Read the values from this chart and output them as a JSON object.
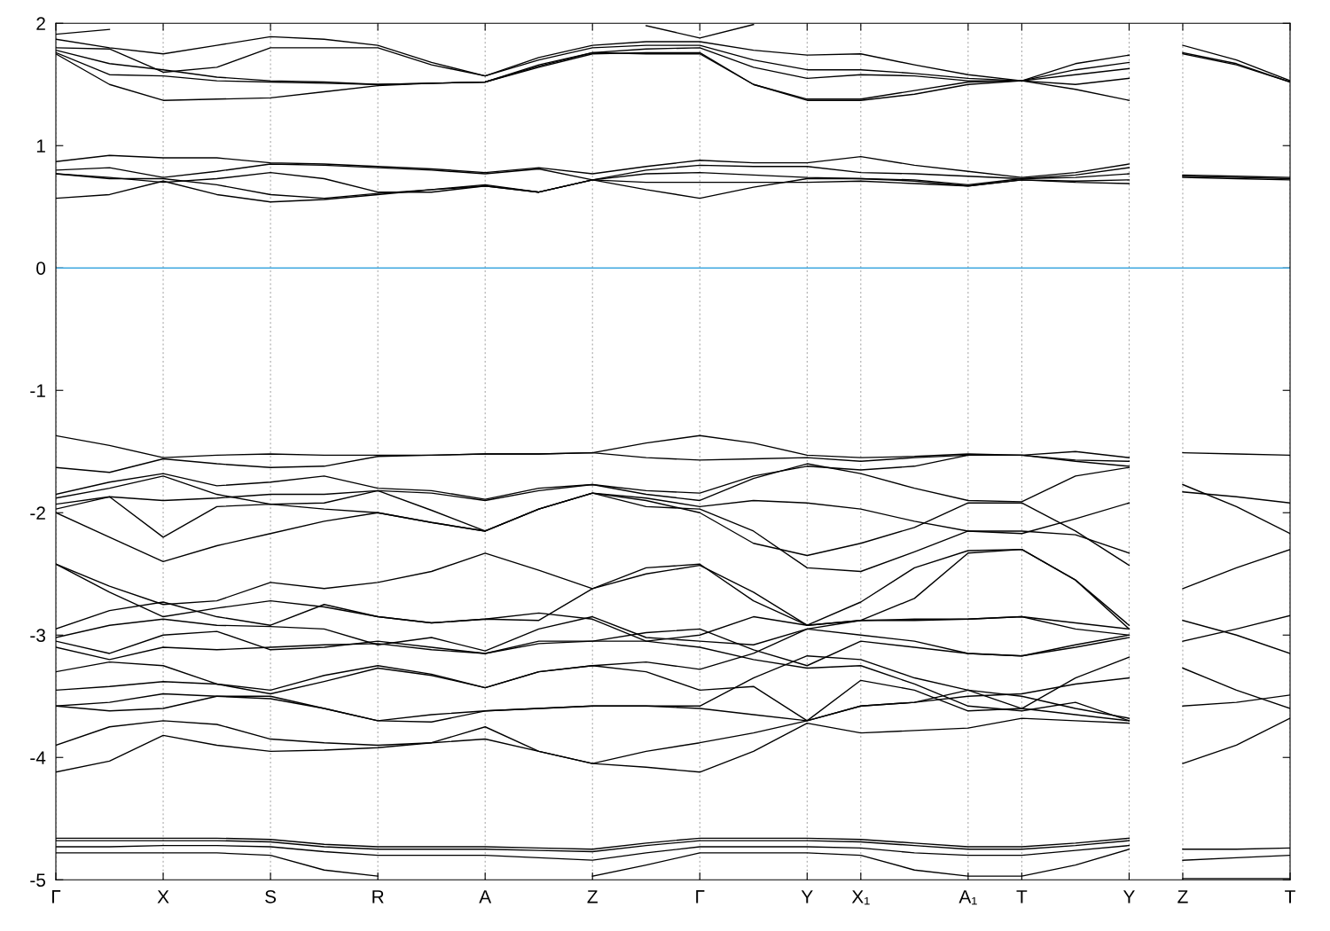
{
  "chart_data": {
    "type": "line",
    "categories": [
      "Γ",
      null,
      "X",
      null,
      "S",
      null,
      "R",
      null,
      "A",
      null,
      "Z",
      null,
      "Γ",
      null,
      "Y",
      "X₁",
      null,
      "A₁",
      "T",
      null,
      "Y",
      "Z",
      null,
      "T"
    ],
    "ylim": [
      -5,
      2
    ],
    "yticks": [
      -5,
      -4,
      -3,
      -2,
      -1,
      0,
      1,
      2
    ],
    "grid": "x",
    "legend": false,
    "line_style": "solid",
    "marker": "none",
    "ref_lines": [
      {
        "axis": "y",
        "value": 0,
        "color": "#3ea8e0",
        "line_style": "solid"
      }
    ],
    "series": [
      {
        "color": "#000000",
        "values": [
          1.91,
          1.95,
          null,
          null,
          null,
          null,
          null,
          null,
          null,
          null,
          null,
          null,
          null,
          null,
          null,
          null,
          null,
          null,
          null,
          null,
          null,
          null,
          null,
          null
        ]
      },
      {
        "color": "#000000",
        "values": [
          null,
          null,
          null,
          null,
          null,
          null,
          null,
          null,
          null,
          null,
          null,
          1.98,
          1.88,
          1.99,
          null,
          null,
          null,
          null,
          null,
          null,
          null,
          null,
          null,
          null
        ]
      },
      {
        "color": "#000000",
        "values": [
          1.87,
          1.8,
          1.75,
          1.82,
          1.89,
          1.87,
          1.82,
          1.68,
          1.57,
          1.72,
          1.82,
          1.85,
          1.85,
          1.78,
          1.74,
          1.75,
          1.66,
          1.58,
          1.53,
          1.67,
          1.74,
          null,
          null,
          null
        ]
      },
      {
        "color": "#000000",
        "values": [
          1.8,
          1.79,
          1.6,
          1.64,
          1.8,
          1.8,
          1.8,
          1.66,
          1.57,
          1.7,
          1.8,
          1.82,
          1.82,
          1.7,
          1.62,
          1.62,
          1.59,
          1.55,
          1.53,
          1.62,
          1.68,
          null,
          null,
          null
        ]
      },
      {
        "color": "#000000",
        "values": [
          1.78,
          1.67,
          1.62,
          1.56,
          1.53,
          1.52,
          1.5,
          1.51,
          1.52,
          1.66,
          1.76,
          1.79,
          1.8,
          1.64,
          1.55,
          1.58,
          1.57,
          1.53,
          1.53,
          1.58,
          1.63,
          null,
          null,
          null
        ]
      },
      {
        "color": "#000000",
        "values": [
          1.76,
          1.58,
          1.57,
          1.53,
          1.52,
          1.51,
          1.5,
          1.51,
          1.52,
          1.64,
          1.75,
          1.76,
          1.76,
          1.5,
          1.38,
          1.38,
          1.45,
          1.52,
          1.53,
          1.5,
          1.55,
          null,
          null,
          null
        ]
      },
      {
        "color": "#000000",
        "values": [
          1.75,
          1.5,
          1.37,
          1.38,
          1.39,
          1.44,
          1.49,
          1.51,
          1.52,
          1.65,
          1.76,
          1.75,
          1.75,
          1.5,
          1.37,
          1.37,
          1.42,
          1.5,
          1.53,
          1.46,
          1.37,
          null,
          null,
          null
        ]
      },
      {
        "color": "#000000",
        "values": [
          0.87,
          0.92,
          0.9,
          0.9,
          0.86,
          0.85,
          0.83,
          0.81,
          0.78,
          0.82,
          0.77,
          0.83,
          0.88,
          0.86,
          0.86,
          0.91,
          0.84,
          0.79,
          0.74,
          0.78,
          0.85,
          null,
          null,
          null
        ]
      },
      {
        "color": "#000000",
        "values": [
          0.8,
          0.82,
          0.74,
          0.79,
          0.85,
          0.84,
          0.82,
          0.8,
          0.77,
          0.81,
          0.72,
          0.8,
          0.84,
          0.83,
          0.83,
          0.78,
          0.77,
          0.75,
          0.73,
          0.76,
          0.82,
          null,
          null,
          null
        ]
      },
      {
        "color": "#000000",
        "values": [
          0.77,
          0.74,
          0.7,
          0.73,
          0.78,
          0.73,
          0.62,
          0.62,
          0.67,
          0.62,
          0.72,
          0.77,
          0.78,
          0.76,
          0.74,
          0.73,
          0.72,
          0.68,
          0.73,
          0.74,
          0.77,
          null,
          null,
          null
        ]
      },
      {
        "color": "#000000",
        "values": [
          0.77,
          0.73,
          0.73,
          0.68,
          0.6,
          0.57,
          0.61,
          0.64,
          0.68,
          0.62,
          0.72,
          0.7,
          0.7,
          0.7,
          0.7,
          0.71,
          0.69,
          0.67,
          0.72,
          0.71,
          0.72,
          null,
          null,
          null
        ]
      },
      {
        "color": "#000000",
        "values": [
          0.57,
          0.6,
          0.71,
          0.6,
          0.54,
          0.56,
          0.6,
          0.64,
          0.67,
          0.62,
          0.72,
          0.64,
          0.57,
          0.66,
          0.73,
          0.73,
          0.71,
          0.67,
          0.72,
          0.7,
          0.69,
          null,
          null,
          null
        ]
      },
      {
        "color": "#000000",
        "values": [
          -1.37,
          -1.45,
          -1.55,
          -1.53,
          -1.52,
          -1.53,
          -1.53,
          -1.53,
          -1.52,
          -1.52,
          -1.51,
          -1.43,
          -1.37,
          -1.43,
          -1.53,
          -1.55,
          -1.54,
          -1.52,
          -1.53,
          -1.5,
          -1.55,
          null,
          null,
          null
        ]
      },
      {
        "color": "#000000",
        "values": [
          -1.63,
          -1.67,
          -1.56,
          -1.6,
          -1.63,
          -1.62,
          -1.54,
          -1.53,
          -1.52,
          -1.52,
          -1.51,
          -1.55,
          -1.57,
          -1.56,
          -1.55,
          -1.58,
          -1.55,
          -1.53,
          -1.53,
          -1.57,
          -1.58,
          null,
          null,
          null
        ]
      },
      {
        "color": "#000000",
        "values": [
          -1.85,
          -1.75,
          -1.68,
          -1.78,
          -1.75,
          -1.7,
          -1.8,
          -1.82,
          -1.89,
          -1.8,
          -1.77,
          -1.82,
          -1.84,
          -1.7,
          -1.62,
          -1.65,
          -1.62,
          -1.53,
          -1.53,
          -1.58,
          -1.62,
          null,
          null,
          null
        ]
      },
      {
        "color": "#000000",
        "values": [
          -1.88,
          -1.8,
          -1.7,
          -1.85,
          -1.93,
          -1.92,
          -1.82,
          -1.84,
          -1.9,
          -1.82,
          -1.77,
          -1.85,
          -1.9,
          -1.72,
          -1.6,
          -1.68,
          -1.8,
          -1.9,
          -1.91,
          -1.7,
          -1.63,
          null,
          null,
          null
        ]
      },
      {
        "color": "#000000",
        "values": [
          -1.93,
          -1.87,
          -1.9,
          -1.88,
          -1.85,
          -1.85,
          -1.82,
          -1.98,
          -2.15,
          -1.97,
          -1.84,
          -1.88,
          -1.95,
          -1.9,
          -1.92,
          -1.97,
          -2.07,
          -2.15,
          -2.15,
          -2.18,
          -2.33,
          null,
          null,
          null
        ]
      },
      {
        "color": "#000000",
        "values": [
          -1.97,
          -1.87,
          -2.2,
          -1.95,
          -1.93,
          -1.97,
          -2.0,
          -2.08,
          -2.15,
          -1.97,
          -1.84,
          -1.9,
          -2.0,
          -2.25,
          -2.35,
          -2.25,
          -2.12,
          -1.92,
          -1.92,
          -2.15,
          -2.43,
          null,
          null,
          null
        ]
      },
      {
        "color": "#000000",
        "values": [
          -2.0,
          -2.2,
          -2.4,
          -2.27,
          -2.17,
          -2.07,
          -2.0,
          -2.08,
          -2.15,
          -1.97,
          -1.84,
          -1.95,
          -1.97,
          -2.15,
          -2.45,
          -2.48,
          -2.32,
          -2.15,
          -2.17,
          -2.05,
          -1.92,
          null,
          null,
          null
        ]
      },
      {
        "color": "#000000",
        "values": [
          -2.42,
          -2.6,
          -2.75,
          -2.72,
          -2.57,
          -2.62,
          -2.57,
          -2.48,
          -2.33,
          -2.47,
          -2.62,
          -2.5,
          -2.43,
          -2.65,
          -2.92,
          -2.73,
          -2.45,
          -2.31,
          -2.3,
          -2.55,
          -2.95,
          null,
          null,
          null
        ]
      },
      {
        "color": "#000000",
        "values": [
          -2.42,
          -2.65,
          -2.85,
          -2.78,
          -2.72,
          -2.77,
          -2.85,
          -2.9,
          -2.87,
          -2.88,
          -2.62,
          -2.45,
          -2.42,
          -2.72,
          -2.92,
          -2.88,
          -2.7,
          -2.33,
          -2.3,
          -2.55,
          -2.92,
          null,
          null,
          null
        ]
      },
      {
        "color": "#000000",
        "values": [
          -2.95,
          -2.8,
          -2.73,
          -2.85,
          -2.92,
          -2.75,
          -2.85,
          -2.9,
          -2.87,
          -2.82,
          -2.87,
          -3.05,
          -3.0,
          -2.85,
          -2.92,
          -2.88,
          -2.88,
          -2.87,
          -2.85,
          -2.9,
          -2.95,
          null,
          null,
          null
        ]
      },
      {
        "color": "#000000",
        "values": [
          -3.02,
          -2.92,
          -2.87,
          -2.92,
          -2.93,
          -2.95,
          -3.08,
          -3.02,
          -3.13,
          -2.95,
          -2.85,
          -3.02,
          -3.05,
          -3.08,
          -2.95,
          -3.0,
          -3.05,
          -3.15,
          -3.17,
          -3.1,
          -3.02,
          null,
          null,
          null
        ]
      },
      {
        "color": "#000000",
        "values": [
          -3.05,
          -3.15,
          -3.0,
          -2.97,
          -3.12,
          -3.1,
          -3.05,
          -3.1,
          -3.15,
          -3.05,
          -3.05,
          -2.98,
          -2.95,
          -3.12,
          -3.25,
          -3.05,
          -3.1,
          -3.15,
          -3.17,
          -3.08,
          -3.0,
          null,
          null,
          null
        ]
      },
      {
        "color": "#000000",
        "values": [
          -3.1,
          -3.2,
          -3.1,
          -3.12,
          -3.1,
          -3.08,
          -3.07,
          -3.12,
          -3.15,
          -3.07,
          -3.05,
          -3.05,
          -3.1,
          -3.2,
          -3.27,
          -3.25,
          -3.4,
          -3.58,
          -3.62,
          -3.55,
          -3.7,
          null,
          null,
          null
        ]
      },
      {
        "color": "#000000",
        "values": [
          -3.3,
          -3.22,
          -3.25,
          -3.4,
          -3.45,
          -3.33,
          -3.25,
          -3.32,
          -3.43,
          -3.3,
          -3.25,
          -3.22,
          -3.28,
          -3.15,
          -2.95,
          -2.88,
          -2.87,
          -2.87,
          -2.85,
          -2.95,
          -3.0,
          null,
          null,
          null
        ]
      },
      {
        "color": "#000000",
        "values": [
          -3.45,
          -3.42,
          -3.38,
          -3.4,
          -3.48,
          -3.38,
          -3.27,
          -3.33,
          -3.43,
          -3.3,
          -3.25,
          -3.3,
          -3.45,
          -3.42,
          -3.7,
          -3.37,
          -3.45,
          -3.62,
          -3.6,
          -3.35,
          -3.18,
          null,
          null,
          null
        ]
      },
      {
        "color": "#000000",
        "values": [
          -3.58,
          -3.55,
          -3.48,
          -3.5,
          -3.52,
          -3.6,
          -3.7,
          -3.65,
          -3.62,
          -3.6,
          -3.58,
          -3.58,
          -3.58,
          -3.35,
          -3.17,
          -3.2,
          -3.35,
          -3.45,
          -3.6,
          -3.65,
          -3.7,
          null,
          null,
          null
        ]
      },
      {
        "color": "#000000",
        "values": [
          -3.58,
          -3.62,
          -3.6,
          -3.5,
          -3.5,
          -3.6,
          -3.7,
          -3.71,
          -3.62,
          -3.6,
          -3.58,
          -3.58,
          -3.6,
          -3.65,
          -3.7,
          -3.58,
          -3.55,
          -3.5,
          -3.48,
          -3.4,
          -3.35,
          null,
          null,
          null
        ]
      },
      {
        "color": "#000000",
        "values": [
          -3.9,
          -3.75,
          -3.7,
          -3.73,
          -3.85,
          -3.88,
          -3.9,
          -3.88,
          -3.75,
          -3.95,
          -4.05,
          -4.08,
          -4.12,
          -3.95,
          -3.72,
          -3.8,
          -3.78,
          -3.76,
          -3.68,
          -3.7,
          -3.72,
          null,
          null,
          null
        ]
      },
      {
        "color": "#000000",
        "values": [
          -4.12,
          -4.03,
          -3.82,
          -3.9,
          -3.95,
          -3.94,
          -3.92,
          -3.88,
          -3.85,
          -3.95,
          -4.05,
          -3.95,
          -3.88,
          -3.8,
          -3.7,
          -3.58,
          -3.55,
          -3.45,
          -3.5,
          -3.6,
          -3.68,
          null,
          null,
          null
        ]
      },
      {
        "color": "#000000",
        "values": [
          -4.66,
          -4.66,
          -4.66,
          -4.66,
          -4.67,
          -4.71,
          -4.73,
          -4.73,
          -4.73,
          -4.74,
          -4.75,
          -4.7,
          -4.66,
          -4.66,
          -4.66,
          -4.67,
          -4.7,
          -4.73,
          -4.73,
          -4.7,
          -4.66,
          null,
          null,
          null
        ]
      },
      {
        "color": "#000000",
        "values": [
          -4.68,
          -4.68,
          -4.68,
          -4.68,
          -4.69,
          -4.73,
          -4.75,
          -4.75,
          -4.75,
          -4.76,
          -4.77,
          -4.72,
          -4.68,
          -4.68,
          -4.68,
          -4.69,
          -4.72,
          -4.75,
          -4.75,
          -4.72,
          -4.68,
          null,
          null,
          null
        ]
      },
      {
        "color": "#000000",
        "values": [
          -4.73,
          -4.73,
          -4.72,
          -4.72,
          -4.73,
          -4.77,
          -4.8,
          -4.8,
          -4.8,
          -4.82,
          -4.84,
          -4.78,
          -4.73,
          -4.73,
          -4.73,
          -4.74,
          -4.78,
          -4.8,
          -4.8,
          -4.76,
          -4.72,
          null,
          null,
          null
        ]
      },
      {
        "color": "#000000",
        "values": [
          -4.78,
          -4.78,
          -4.78,
          -4.78,
          -4.8,
          -4.92,
          -4.97,
          null,
          null,
          null,
          -4.97,
          -4.88,
          -4.78,
          -4.78,
          -4.78,
          -4.8,
          -4.92,
          -4.97,
          -4.97,
          -4.88,
          -4.75,
          null,
          null,
          null
        ]
      },
      {
        "color": "#000000",
        "values": [
          null,
          null,
          null,
          null,
          null,
          null,
          null,
          null,
          null,
          null,
          null,
          null,
          null,
          null,
          null,
          null,
          null,
          null,
          null,
          null,
          null,
          1.82,
          1.7,
          1.53
        ]
      },
      {
        "color": "#000000",
        "values": [
          null,
          null,
          null,
          null,
          null,
          null,
          null,
          null,
          null,
          null,
          null,
          null,
          null,
          null,
          null,
          null,
          null,
          null,
          null,
          null,
          null,
          1.76,
          1.67,
          1.52
        ]
      },
      {
        "color": "#000000",
        "values": [
          null,
          null,
          null,
          null,
          null,
          null,
          null,
          null,
          null,
          null,
          null,
          null,
          null,
          null,
          null,
          null,
          null,
          null,
          null,
          null,
          null,
          1.75,
          1.66,
          1.52
        ]
      },
      {
        "color": "#000000",
        "values": [
          null,
          null,
          null,
          null,
          null,
          null,
          null,
          null,
          null,
          null,
          null,
          null,
          null,
          null,
          null,
          null,
          null,
          null,
          null,
          null,
          null,
          0.76,
          0.75,
          0.74
        ]
      },
      {
        "color": "#000000",
        "values": [
          null,
          null,
          null,
          null,
          null,
          null,
          null,
          null,
          null,
          null,
          null,
          null,
          null,
          null,
          null,
          null,
          null,
          null,
          null,
          null,
          null,
          0.75,
          0.74,
          0.73
        ]
      },
      {
        "color": "#000000",
        "values": [
          null,
          null,
          null,
          null,
          null,
          null,
          null,
          null,
          null,
          null,
          null,
          null,
          null,
          null,
          null,
          null,
          null,
          null,
          null,
          null,
          null,
          0.74,
          0.73,
          0.72
        ]
      },
      {
        "color": "#000000",
        "values": [
          null,
          null,
          null,
          null,
          null,
          null,
          null,
          null,
          null,
          null,
          null,
          null,
          null,
          null,
          null,
          null,
          null,
          null,
          null,
          null,
          null,
          -1.51,
          -1.52,
          -1.53
        ]
      },
      {
        "color": "#000000",
        "values": [
          null,
          null,
          null,
          null,
          null,
          null,
          null,
          null,
          null,
          null,
          null,
          null,
          null,
          null,
          null,
          null,
          null,
          null,
          null,
          null,
          null,
          -1.83,
          -1.87,
          -1.92
        ]
      },
      {
        "color": "#000000",
        "values": [
          null,
          null,
          null,
          null,
          null,
          null,
          null,
          null,
          null,
          null,
          null,
          null,
          null,
          null,
          null,
          null,
          null,
          null,
          null,
          null,
          null,
          -1.77,
          -1.95,
          -2.17
        ]
      },
      {
        "color": "#000000",
        "values": [
          null,
          null,
          null,
          null,
          null,
          null,
          null,
          null,
          null,
          null,
          null,
          null,
          null,
          null,
          null,
          null,
          null,
          null,
          null,
          null,
          null,
          -2.62,
          -2.45,
          -2.3
        ]
      },
      {
        "color": "#000000",
        "values": [
          null,
          null,
          null,
          null,
          null,
          null,
          null,
          null,
          null,
          null,
          null,
          null,
          null,
          null,
          null,
          null,
          null,
          null,
          null,
          null,
          null,
          -2.88,
          -3.0,
          -3.15
        ]
      },
      {
        "color": "#000000",
        "values": [
          null,
          null,
          null,
          null,
          null,
          null,
          null,
          null,
          null,
          null,
          null,
          null,
          null,
          null,
          null,
          null,
          null,
          null,
          null,
          null,
          null,
          -3.05,
          -2.95,
          -2.84
        ]
      },
      {
        "color": "#000000",
        "values": [
          null,
          null,
          null,
          null,
          null,
          null,
          null,
          null,
          null,
          null,
          null,
          null,
          null,
          null,
          null,
          null,
          null,
          null,
          null,
          null,
          null,
          -3.27,
          -3.45,
          -3.6
        ]
      },
      {
        "color": "#000000",
        "values": [
          null,
          null,
          null,
          null,
          null,
          null,
          null,
          null,
          null,
          null,
          null,
          null,
          null,
          null,
          null,
          null,
          null,
          null,
          null,
          null,
          null,
          -3.58,
          -3.55,
          -3.49
        ]
      },
      {
        "color": "#000000",
        "values": [
          null,
          null,
          null,
          null,
          null,
          null,
          null,
          null,
          null,
          null,
          null,
          null,
          null,
          null,
          null,
          null,
          null,
          null,
          null,
          null,
          null,
          -4.05,
          -3.9,
          -3.68
        ]
      },
      {
        "color": "#000000",
        "values": [
          null,
          null,
          null,
          null,
          null,
          null,
          null,
          null,
          null,
          null,
          null,
          null,
          null,
          null,
          null,
          null,
          null,
          null,
          null,
          null,
          null,
          -4.75,
          -4.75,
          -4.74
        ]
      },
      {
        "color": "#000000",
        "values": [
          null,
          null,
          null,
          null,
          null,
          null,
          null,
          null,
          null,
          null,
          null,
          null,
          null,
          null,
          null,
          null,
          null,
          null,
          null,
          null,
          null,
          -4.84,
          -4.82,
          -4.8
        ]
      },
      {
        "color": "#000000",
        "values": [
          null,
          null,
          null,
          null,
          null,
          null,
          null,
          null,
          null,
          null,
          null,
          null,
          null,
          null,
          null,
          null,
          null,
          null,
          null,
          null,
          null,
          -4.99,
          -4.99,
          -4.99
        ]
      }
    ]
  }
}
